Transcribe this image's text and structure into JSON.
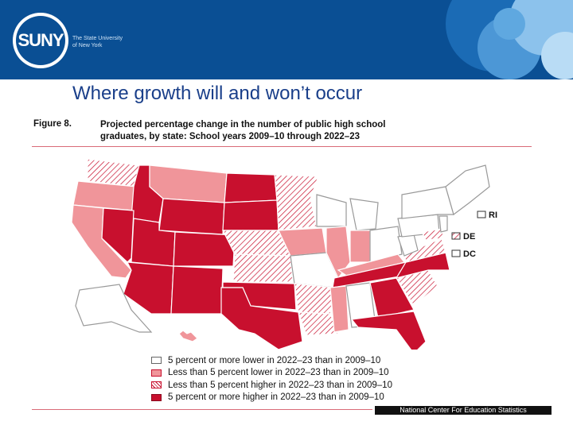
{
  "header": {
    "logo_text": "SUNY",
    "logo_subtitle_line1": "The State University",
    "logo_subtitle_line2": "of New York"
  },
  "slide": {
    "title": "Where growth will and won’t occur"
  },
  "figure": {
    "label": "Figure 8.",
    "caption_line1": "Projected percentage change in the number of public high school",
    "caption_line2": "graduates, by state: School years 2009–10 through 2022–23"
  },
  "map_labels": {
    "ri": "RI",
    "de": "DE",
    "dc": "DC"
  },
  "legend": [
    {
      "label": "5 percent or more lower in 2022–23 than in 2009–10",
      "category": "lower5plus",
      "color": "#ffffff"
    },
    {
      "label": "Less than 5 percent lower in 2022–23 than in 2009–10",
      "category": "lowerless5",
      "color": "#f0959a"
    },
    {
      "label": "Less than 5 percent higher in 2022–23 than in 2009–10",
      "category": "higherless5",
      "color": "hatched"
    },
    {
      "label": "5 percent or more higher in 2022–23 than in 2009–10",
      "category": "higher5plus",
      "color": "#c8102e"
    }
  ],
  "source": "National Center For Education Statistics",
  "colors": {
    "banner": "#0a4f94",
    "high": "#c8102e",
    "pink": "#f0959a",
    "hatch": "#c8102e",
    "title": "#1a3f8a"
  }
}
